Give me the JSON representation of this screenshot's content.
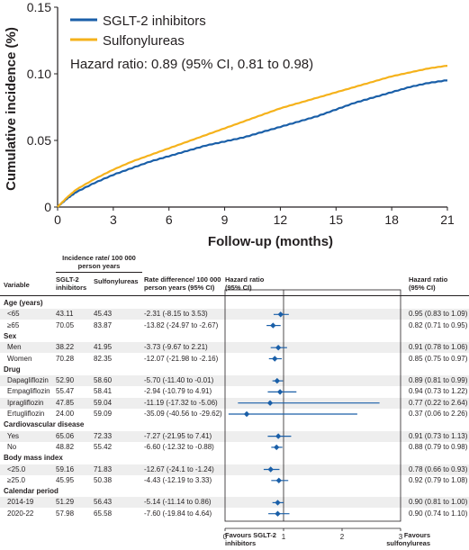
{
  "chart_data": [
    {
      "type": "line",
      "xlabel": "Follow-up (months)",
      "ylabel": "Cumulative incidence (%)",
      "xlim": [
        0,
        21
      ],
      "ylim": [
        0,
        0.15
      ],
      "xticks": [
        "0",
        "3",
        "6",
        "9",
        "12",
        "15",
        "18",
        "21"
      ],
      "yticks": [
        "0",
        "0.05",
        "0.10",
        "0.15"
      ],
      "grid": false,
      "legend_placement": "top-left",
      "annotation": "Hazard ratio: 0.89 (95% CI, 0.81 to 0.98)",
      "series": [
        {
          "name": "SGLT-2 inhibitors",
          "color": "#1a5fa8",
          "x": [
            0,
            0.5,
            1,
            2,
            3,
            4,
            5,
            6,
            7,
            8,
            9,
            10,
            11,
            12,
            13,
            14,
            15,
            16,
            17,
            18,
            19,
            20,
            21
          ],
          "y": [
            0,
            0.006,
            0.011,
            0.018,
            0.024,
            0.029,
            0.034,
            0.038,
            0.042,
            0.046,
            0.049,
            0.052,
            0.056,
            0.06,
            0.064,
            0.068,
            0.073,
            0.078,
            0.082,
            0.086,
            0.09,
            0.093,
            0.095
          ]
        },
        {
          "name": "Sulfonylureas",
          "color": "#f5b21b",
          "x": [
            0,
            0.5,
            1,
            2,
            3,
            4,
            5,
            6,
            7,
            8,
            9,
            10,
            11,
            12,
            13,
            14,
            15,
            16,
            17,
            18,
            19,
            20,
            21
          ],
          "y": [
            0,
            0.007,
            0.013,
            0.021,
            0.028,
            0.034,
            0.039,
            0.044,
            0.049,
            0.054,
            0.059,
            0.064,
            0.069,
            0.074,
            0.078,
            0.082,
            0.086,
            0.09,
            0.094,
            0.098,
            0.101,
            0.104,
            0.106
          ]
        }
      ]
    },
    {
      "type": "forest",
      "column_group_header": "Incidence rate/ 100 000 person years",
      "headers": {
        "variable": "Variable",
        "sglt2": "SGLT-2 inhibitors",
        "sulfonylureas": "Sulfonylureas",
        "rate_difference": "Rate difference/ 100 000 person years (95% CI)",
        "hr_plot": "Hazard ratio (95% CI)",
        "hr_text": "Hazard ratio (95% CI)"
      },
      "xaxis": {
        "ticks": [
          "0",
          "1",
          "2",
          "3"
        ],
        "xlim": [
          0,
          3
        ],
        "reference": 1
      },
      "footer_left": "Favours SGLT-2 inhibitors",
      "footer_right": "Favours sulfonylureas",
      "rows": [
        {
          "kind": "group",
          "label": "Age (years)"
        },
        {
          "kind": "row",
          "label": "<65",
          "sglt2": "43.11",
          "su": "45.43",
          "rd": "-2.31 (-8.15 to 3.53)",
          "hr": 0.95,
          "lo": 0.83,
          "hi": 1.09,
          "hr_text": "0.95 (0.83 to 1.09)"
        },
        {
          "kind": "row",
          "label": "≥65",
          "sglt2": "70.05",
          "su": "83.87",
          "rd": "-13.82 (-24.97 to -2.67)",
          "hr": 0.82,
          "lo": 0.71,
          "hi": 0.95,
          "hr_text": "0.82 (0.71 to 0.95)"
        },
        {
          "kind": "group",
          "label": "Sex"
        },
        {
          "kind": "row",
          "label": "Men",
          "sglt2": "38.22",
          "su": "41.95",
          "rd": "-3.73 (-9.67 to 2.21)",
          "hr": 0.91,
          "lo": 0.78,
          "hi": 1.06,
          "hr_text": "0.91 (0.78 to 1.06)"
        },
        {
          "kind": "row",
          "label": "Women",
          "sglt2": "70.28",
          "su": "82.35",
          "rd": "-12.07 (-21.98 to -2.16)",
          "hr": 0.85,
          "lo": 0.75,
          "hi": 0.97,
          "hr_text": "0.85 (0.75 to 0.97)"
        },
        {
          "kind": "group",
          "label": "Drug"
        },
        {
          "kind": "row",
          "label": "Dapagliflozin",
          "sglt2": "52.90",
          "su": "58.60",
          "rd": "-5.70 (-11.40 to -0.01)",
          "hr": 0.89,
          "lo": 0.81,
          "hi": 0.99,
          "hr_text": "0.89 (0.81 to 0.99)"
        },
        {
          "kind": "row",
          "label": "Empagliflozin",
          "sglt2": "55.47",
          "su": "58.41",
          "rd": "-2.94 (-10.79 to 4.91)",
          "hr": 0.94,
          "lo": 0.73,
          "hi": 1.22,
          "hr_text": "0.94 (0.73 to 1.22)"
        },
        {
          "kind": "row",
          "label": "Ipragliflozin",
          "sglt2": "47.85",
          "su": "59.04",
          "rd": "-11.19 (-17.32 to -5.06)",
          "hr": 0.77,
          "lo": 0.22,
          "hi": 2.64,
          "hr_text": "0.77 (0.22 to 2.64)"
        },
        {
          "kind": "row",
          "label": "Ertugliflozin",
          "sglt2": "24.00",
          "su": "59.09",
          "rd": "-35.09 (-40.56 to -29.62)",
          "hr": 0.37,
          "lo": 0.06,
          "hi": 2.26,
          "hr_text": "0.37 (0.06 to 2.26)"
        },
        {
          "kind": "group",
          "label": "Cardiovascular disease"
        },
        {
          "kind": "row",
          "label": "Yes",
          "sglt2": "65.06",
          "su": "72.33",
          "rd": "-7.27 (-21.95 to 7.41)",
          "hr": 0.91,
          "lo": 0.73,
          "hi": 1.13,
          "hr_text": "0.91 (0.73 to 1.13)"
        },
        {
          "kind": "row",
          "label": "No",
          "sglt2": "48.82",
          "su": "55.42",
          "rd": "-6.60 (-12.32 to -0.88)",
          "hr": 0.88,
          "lo": 0.79,
          "hi": 0.98,
          "hr_text": "0.88 (0.79 to 0.98)"
        },
        {
          "kind": "group",
          "label": "Body mass index"
        },
        {
          "kind": "row",
          "label": "<25.0",
          "sglt2": "59.16",
          "su": "71.83",
          "rd": "-12.67 (-24.1 to -1.24)",
          "hr": 0.78,
          "lo": 0.66,
          "hi": 0.93,
          "hr_text": "0.78 (0.66 to 0.93)"
        },
        {
          "kind": "row",
          "label": "≥25.0",
          "sglt2": "45.95",
          "su": "50.38",
          "rd": "-4.43 (-12.19 to 3.33)",
          "hr": 0.92,
          "lo": 0.79,
          "hi": 1.08,
          "hr_text": "0.92 (0.79 to 1.08)"
        },
        {
          "kind": "group",
          "label": "Calendar period"
        },
        {
          "kind": "row",
          "label": "2014-19",
          "sglt2": "51.29",
          "su": "56.43",
          "rd": "-5.14 (-11.14 to 0.86)",
          "hr": 0.9,
          "lo": 0.81,
          "hi": 1.0,
          "hr_text": "0.90 (0.81 to 1.00)"
        },
        {
          "kind": "row",
          "label": "2020-22",
          "sglt2": "57.98",
          "su": "65.58",
          "rd": "-7.60 (-19.84 to 4.64)",
          "hr": 0.9,
          "lo": 0.74,
          "hi": 1.1,
          "hr_text": "0.90 (0.74 to 1.10)"
        }
      ]
    }
  ]
}
